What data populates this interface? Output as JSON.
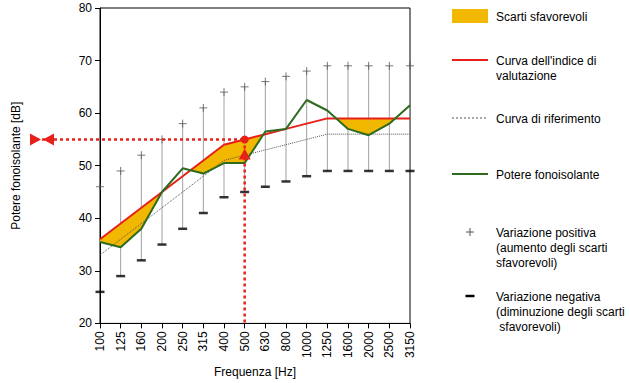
{
  "chart_data": {
    "type": "line",
    "x_label": "Frequenza [Hz]",
    "y_label": "Potere fonoisolante [dB]",
    "categories": [
      "100",
      "125",
      "160",
      "200",
      "250",
      "315",
      "400",
      "500",
      "630",
      "800",
      "1000",
      "1250",
      "1600",
      "2000",
      "2500",
      "3150"
    ],
    "ylim": [
      20,
      80
    ],
    "yticks": [
      20,
      30,
      40,
      50,
      60,
      70,
      80
    ],
    "grid": false,
    "legend": "right",
    "unfavourable_area": {
      "name": "Scarti sfavorevoli",
      "color": "#f2b800",
      "upper": "Curva dell'indice di valutazione",
      "lower": "Potere fonoisolante"
    },
    "series": [
      {
        "name": "Curva dell'indice di valutazione",
        "type": "line",
        "line_style": "solid",
        "color": "#e8201a",
        "values": [
          36,
          39,
          42,
          45,
          48,
          51,
          54,
          55,
          56,
          57,
          58,
          59,
          59,
          59,
          59,
          59
        ]
      },
      {
        "name": "Curva di riferimento",
        "type": "line",
        "line_style": "dotted",
        "color": "#555555",
        "values": [
          33,
          36,
          39,
          42,
          45,
          48,
          51,
          52,
          53,
          54,
          55,
          56,
          56,
          56,
          56,
          56
        ]
      },
      {
        "name": "Potere fonoisolante",
        "type": "line",
        "line_style": "solid",
        "color": "#2e6b1f",
        "values": [
          35.5,
          34.5,
          38,
          45,
          49.5,
          48.5,
          50.5,
          50.5,
          56.5,
          57,
          62.5,
          60.5,
          57,
          55.8,
          58,
          61.5
        ]
      },
      {
        "name": "Variazione positiva (aumento degli scarti sfavorevoli)",
        "type": "scatter",
        "marker": "plus",
        "color": "#555555",
        "values": [
          46,
          49,
          52,
          55,
          58,
          61,
          64,
          65,
          66,
          67,
          68,
          69,
          69,
          69,
          69,
          69
        ]
      },
      {
        "name": "Variazione negativa (diminuzione degli scarti sfavorevoli)",
        "type": "scatter",
        "marker": "minus",
        "color": "#000000",
        "values": [
          26,
          29,
          32,
          35,
          38,
          41,
          44,
          45,
          46,
          47,
          48,
          49,
          49,
          49,
          49,
          49
        ]
      }
    ],
    "reference_point": {
      "x": "500",
      "y": 55,
      "color": "#e8201a"
    }
  }
}
